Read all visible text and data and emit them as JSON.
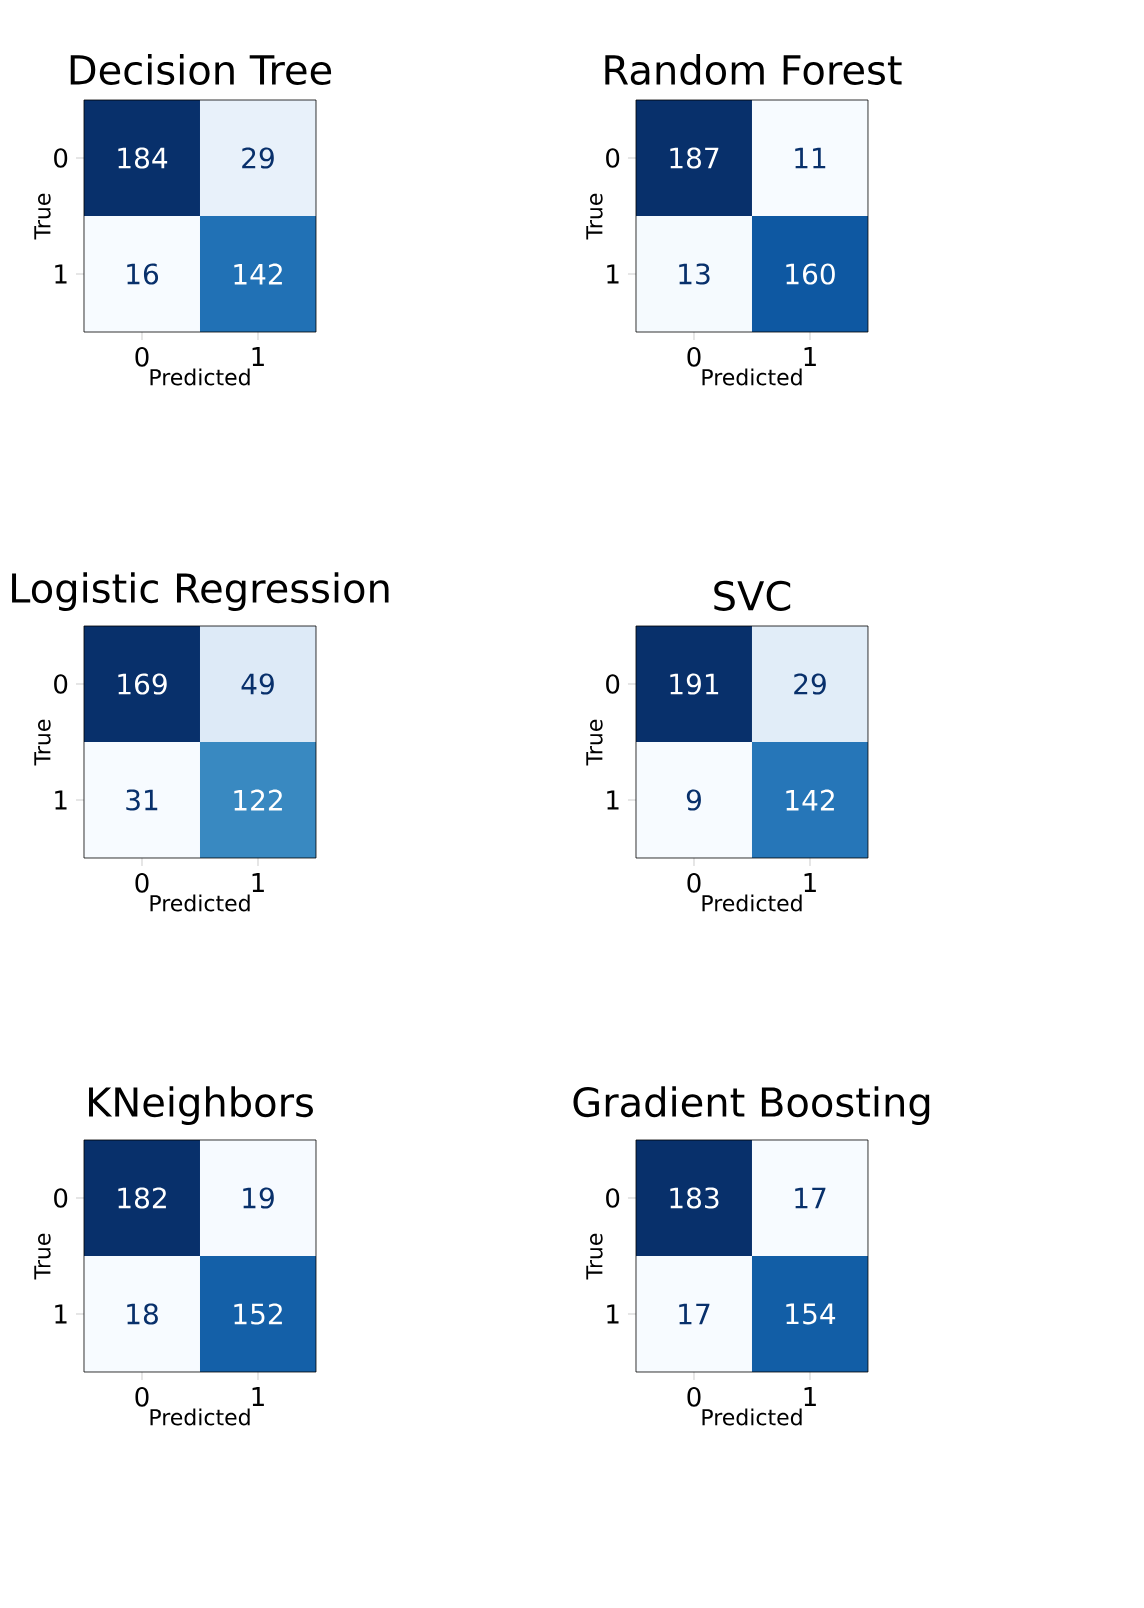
{
  "chart_data": [
    {
      "type": "heatmap",
      "title": "Decision Tree",
      "xlabel": "Predicted",
      "ylabel": "True",
      "categories": [
        "0",
        "1"
      ],
      "y_categories": [
        "0",
        "1"
      ],
      "cells": [
        [
          184,
          29
        ],
        [
          16,
          142
        ]
      ],
      "data_labels": true
    },
    {
      "type": "heatmap",
      "title": "Random Forest",
      "xlabel": "Predicted",
      "ylabel": "True",
      "categories": [
        "0",
        "1"
      ],
      "y_categories": [
        "0",
        "1"
      ],
      "cells": [
        [
          187,
          11
        ],
        [
          13,
          160
        ]
      ],
      "data_labels": true
    },
    {
      "type": "heatmap",
      "title": "Logistic Regression",
      "xlabel": "Predicted",
      "ylabel": "True",
      "categories": [
        "0",
        "1"
      ],
      "y_categories": [
        "0",
        "1"
      ],
      "cells": [
        [
          169,
          49
        ],
        [
          31,
          122
        ]
      ],
      "data_labels": true
    },
    {
      "type": "heatmap",
      "title": "SVC",
      "xlabel": "Predicted",
      "ylabel": "True",
      "categories": [
        "0",
        "1"
      ],
      "y_categories": [
        "0",
        "1"
      ],
      "cells": [
        [
          191,
          29
        ],
        [
          9,
          142
        ]
      ],
      "data_labels": true
    },
    {
      "type": "heatmap",
      "title": "KNeighbors",
      "xlabel": "Predicted",
      "ylabel": "True",
      "categories": [
        "0",
        "1"
      ],
      "y_categories": [
        "0",
        "1"
      ],
      "cells": [
        [
          182,
          19
        ],
        [
          18,
          152
        ]
      ],
      "data_labels": true
    },
    {
      "type": "heatmap",
      "title": "Gradient Boosting",
      "xlabel": "Predicted",
      "ylabel": "True",
      "categories": [
        "0",
        "1"
      ],
      "y_categories": [
        "0",
        "1"
      ],
      "cells": [
        [
          183,
          17
        ],
        [
          17,
          154
        ]
      ],
      "data_labels": true
    }
  ]
}
